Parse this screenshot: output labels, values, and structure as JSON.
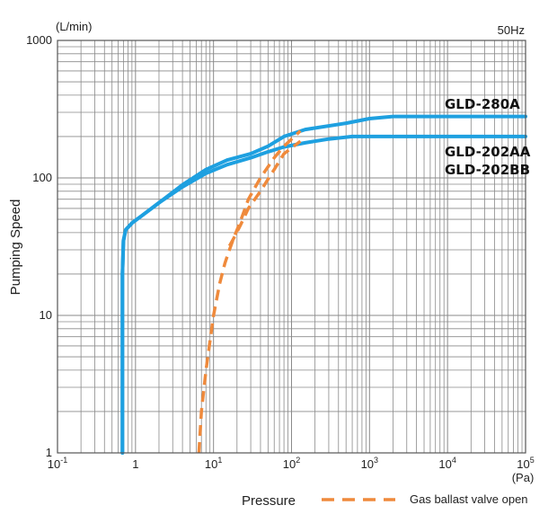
{
  "chart_data": {
    "type": "line",
    "title": "",
    "xlabel": "Pressure",
    "ylabel": "Pumping Speed",
    "x_unit": "(Pa)",
    "y_unit": "(L/min)",
    "frequency_note": "50Hz",
    "x_scale": "log",
    "y_scale": "log",
    "xlim": [
      0.1,
      100000
    ],
    "ylim": [
      1,
      1000
    ],
    "grid": true,
    "x_ticks": [
      {
        "base": "10",
        "exp": "-1"
      },
      {
        "base": "1",
        "exp": ""
      },
      {
        "base": "10",
        "exp": "1"
      },
      {
        "base": "10",
        "exp": "2"
      },
      {
        "base": "10",
        "exp": "3"
      },
      {
        "base": "10",
        "exp": "4"
      },
      {
        "base": "10",
        "exp": "5"
      }
    ],
    "y_ticks": [
      "1",
      "10",
      "100",
      "1000"
    ],
    "series": [
      {
        "name": "GLD-280A",
        "style": "solid",
        "color": "#1ea0e0",
        "x": [
          0.68,
          0.68,
          0.7,
          0.75,
          0.9,
          1.2,
          2,
          4,
          8,
          15,
          30,
          50,
          80,
          150,
          500,
          1000,
          2000,
          5000,
          100000
        ],
        "y": [
          1,
          20,
          35,
          42,
          47,
          53,
          66,
          89,
          115,
          135,
          150,
          170,
          200,
          225,
          250,
          270,
          280,
          280,
          280
        ]
      },
      {
        "name": "GLD-202AA / GLD-202BB",
        "style": "solid",
        "color": "#1ea0e0",
        "x": [
          0.68,
          0.68,
          0.7,
          0.75,
          0.9,
          1.2,
          2,
          4,
          8,
          15,
          30,
          50,
          80,
          150,
          300,
          600,
          1000,
          100000
        ],
        "y": [
          1,
          20,
          35,
          42,
          47,
          53,
          66,
          86,
          108,
          125,
          140,
          155,
          168,
          180,
          192,
          200,
          200,
          200
        ]
      },
      {
        "name": "Gas ballast valve open",
        "style": "dashed",
        "color": "#ef8a3c",
        "x": [
          6.5,
          7,
          8,
          10,
          12,
          14,
          16,
          18,
          22,
          28,
          40,
          60,
          80,
          130
        ],
        "y": [
          1,
          2,
          4,
          10,
          17,
          24,
          30,
          36,
          48,
          70,
          100,
          140,
          170,
          220
        ]
      },
      {
        "name": "Gas ballast valve open (202)",
        "style": "dashed",
        "color": "#ef8a3c",
        "x": [
          16,
          18,
          22,
          28,
          40,
          60,
          80,
          130
        ],
        "y": [
          32,
          36,
          45,
          60,
          80,
          115,
          150,
          185
        ]
      }
    ],
    "labels": {
      "model_a": "GLD-280A",
      "model_b1": "GLD-202AA",
      "model_b2": "GLD-202BB"
    },
    "legend": {
      "text": "Gas ballast valve open",
      "style": "dashed",
      "color": "#ef8a3c",
      "position": "bottom-right"
    }
  }
}
